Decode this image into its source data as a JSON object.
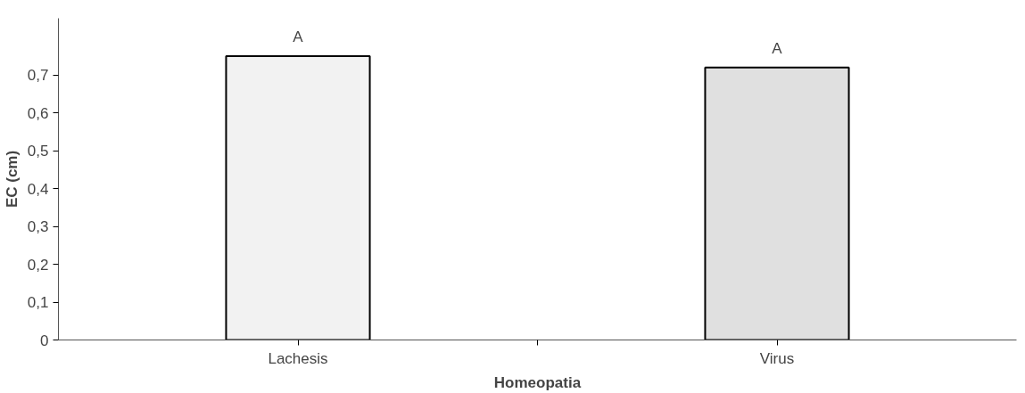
{
  "chart_data": {
    "type": "bar",
    "xlabel": "Homeopatia",
    "ylabel": "EC (cm)",
    "categories": [
      "Lachesis",
      "Virus"
    ],
    "values": [
      0.75,
      0.72
    ],
    "colors": [
      "#f2f2f2",
      "#e0e0e0"
    ],
    "ylim": [
      0,
      0.85
    ],
    "yticks": [
      0,
      {
        "value": 0.1,
        "label": "0,1"
      },
      {
        "value": 0.2,
        "label": "0,2"
      },
      {
        "value": 0.3,
        "label": "0,3"
      },
      {
        "value": 0.4,
        "label": "0,4"
      },
      {
        "value": 0.5,
        "label": "0,5"
      },
      {
        "value": 0.6,
        "label": "0,6"
      },
      {
        "value": 0.7,
        "label": "0,7"
      }
    ],
    "annotations": [
      {
        "text": "A",
        "x": "Lachesis",
        "y": 0.75
      },
      {
        "text": "A",
        "x": "Virus",
        "y": 0.72
      }
    ],
    "grid": false
  }
}
